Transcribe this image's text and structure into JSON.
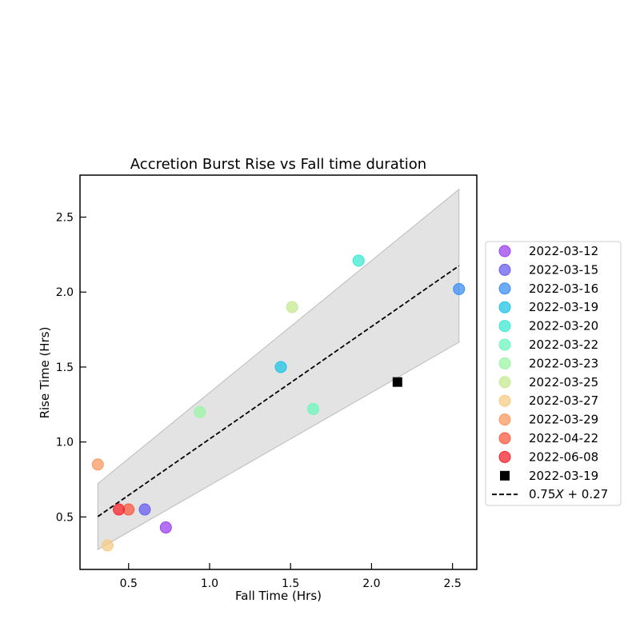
{
  "chart_data": {
    "type": "scatter",
    "title": "Accretion Burst Rise vs Fall time duration",
    "xlabel": "Fall Time (Hrs)",
    "ylabel": "Rise Time (Hrs)",
    "xlim": [
      0.2,
      2.65
    ],
    "ylim": [
      0.15,
      2.78
    ],
    "xticks": [
      0.5,
      1.0,
      1.5,
      2.0,
      2.5
    ],
    "xtick_labels": [
      "0.5",
      "1.0",
      "1.5",
      "2.0",
      "2.5"
    ],
    "yticks": [
      0.5,
      1.0,
      1.5,
      2.0,
      2.5
    ],
    "ytick_labels": [
      "0.5",
      "1.0",
      "1.5",
      "2.0",
      "2.5"
    ],
    "legend_position": "right",
    "series": [
      {
        "name": "2022-03-12",
        "marker": "circle",
        "color": "#9b42f0",
        "x": [
          0.73
        ],
        "y": [
          0.43
        ]
      },
      {
        "name": "2022-03-15",
        "marker": "circle",
        "color": "#6a5ef2",
        "x": [
          0.6
        ],
        "y": [
          0.55
        ]
      },
      {
        "name": "2022-03-16",
        "marker": "circle",
        "color": "#3c8ef5",
        "x": [
          2.54
        ],
        "y": [
          2.02
        ]
      },
      {
        "name": "2022-03-19",
        "marker": "circle",
        "color": "#22c4e6",
        "x": [
          1.44
        ],
        "y": [
          1.5
        ]
      },
      {
        "name": "2022-03-20",
        "marker": "circle",
        "color": "#3ee8d2",
        "x": [
          1.92
        ],
        "y": [
          2.21
        ]
      },
      {
        "name": "2022-03-22",
        "marker": "circle",
        "color": "#6ef7be",
        "x": [
          1.64
        ],
        "y": [
          1.22
        ]
      },
      {
        "name": "2022-03-23",
        "marker": "circle",
        "color": "#9cf5a6",
        "x": [
          0.94
        ],
        "y": [
          1.2
        ]
      },
      {
        "name": "2022-03-25",
        "marker": "circle",
        "color": "#c6ea92",
        "x": [
          1.51
        ],
        "y": [
          1.9
        ]
      },
      {
        "name": "2022-03-27",
        "marker": "circle",
        "color": "#f5cc84",
        "x": [
          0.37
        ],
        "y": [
          0.31
        ]
      },
      {
        "name": "2022-03-29",
        "marker": "circle",
        "color": "#f89a62",
        "x": [
          0.31
        ],
        "y": [
          0.85
        ]
      },
      {
        "name": "2022-04-22",
        "marker": "circle",
        "color": "#fa5b40",
        "x": [
          0.5
        ],
        "y": [
          0.55
        ]
      },
      {
        "name": "2022-06-08",
        "marker": "circle",
        "color": "#f6262c",
        "x": [
          0.44
        ],
        "y": [
          0.55
        ]
      },
      {
        "name": "2022-03-19",
        "marker": "square",
        "color": "#000000",
        "x": [
          2.16
        ],
        "y": [
          1.4
        ]
      }
    ],
    "fit": {
      "label_prefix": "0.75",
      "label_var": "X",
      "label_suffix": " + 0.27",
      "slope": 0.75,
      "intercept": 0.27,
      "x_range": [
        0.31,
        2.54
      ],
      "band_half_width_start": 0.22,
      "band_half_width_end": 0.51,
      "band_color": "#cccccc"
    }
  }
}
